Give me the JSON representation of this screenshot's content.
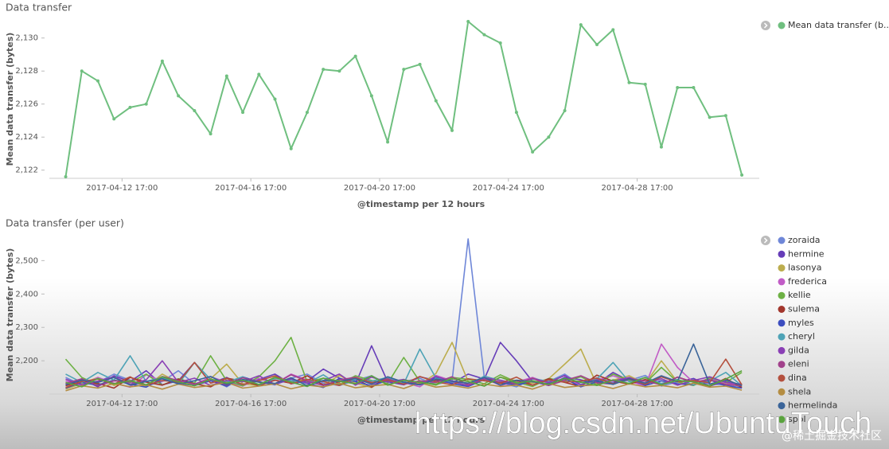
{
  "chart_data": [
    {
      "type": "line",
      "title": "Data transfer",
      "x_label": "@timestamp per 12 hours",
      "y_label": "Mean data transfer (bytes)",
      "x": [
        "2017-04-10 23:00",
        "2017-04-11 11:00",
        "2017-04-11 23:00",
        "2017-04-12 11:00",
        "2017-04-12 23:00",
        "2017-04-13 11:00",
        "2017-04-13 23:00",
        "2017-04-14 11:00",
        "2017-04-14 23:00",
        "2017-04-15 11:00",
        "2017-04-15 23:00",
        "2017-04-16 11:00",
        "2017-04-16 23:00",
        "2017-04-17 11:00",
        "2017-04-17 23:00",
        "2017-04-18 11:00",
        "2017-04-18 23:00",
        "2017-04-19 11:00",
        "2017-04-19 23:00",
        "2017-04-20 11:00",
        "2017-04-20 23:00",
        "2017-04-21 11:00",
        "2017-04-21 23:00",
        "2017-04-22 11:00",
        "2017-04-22 23:00",
        "2017-04-23 11:00",
        "2017-04-23 23:00",
        "2017-04-24 11:00",
        "2017-04-24 23:00",
        "2017-04-25 11:00",
        "2017-04-25 23:00",
        "2017-04-26 11:00",
        "2017-04-26 23:00",
        "2017-04-27 11:00",
        "2017-04-27 23:00",
        "2017-04-28 11:00",
        "2017-04-28 23:00",
        "2017-04-29 11:00",
        "2017-04-29 23:00",
        "2017-04-30 11:00",
        "2017-04-30 23:00",
        "2017-05-01 11:00",
        "2017-05-01 23:00"
      ],
      "xlim": [
        "2017-04-10 12:00",
        "2017-05-02 12:00"
      ],
      "xticks": [
        "2017-04-12 17:00",
        "2017-04-16 17:00",
        "2017-04-20 17:00",
        "2017-04-24 17:00",
        "2017-04-28 17:00"
      ],
      "ylim": [
        2121.6,
        2131
      ],
      "yticks": [
        {
          "value": 2122,
          "label": "2,122"
        },
        {
          "value": 2124,
          "label": "2,124"
        },
        {
          "value": 2126,
          "label": "2,126"
        },
        {
          "value": 2128,
          "label": "2,128"
        },
        {
          "value": 2130,
          "label": "2,130"
        }
      ],
      "markers": true,
      "legend": "right",
      "series": [
        {
          "name": "Mean data transfer (b...",
          "color": "#6fbf7f",
          "values": [
            2121.6,
            2128.0,
            2127.4,
            2125.1,
            2125.8,
            2126.0,
            2128.6,
            2126.5,
            2125.6,
            2124.2,
            2127.7,
            2125.5,
            2127.8,
            2126.3,
            2123.3,
            2125.5,
            2128.1,
            2128.0,
            2128.9,
            2126.5,
            2123.7,
            2128.1,
            2128.4,
            2126.2,
            2124.4,
            2131.0,
            2130.2,
            2129.7,
            2125.5,
            2123.1,
            2124.0,
            2125.6,
            2130.8,
            2129.6,
            2130.5,
            2127.3,
            2127.2,
            2123.4,
            2127.0,
            2127.0,
            2125.2,
            2125.3,
            2121.7
          ]
        }
      ]
    },
    {
      "type": "line",
      "title": "Data transfer (per user)",
      "x_label": "@timestamp per 12 hours",
      "y_label": "Mean data transfer (bytes)",
      "x": [
        "2017-04-10 23:00",
        "2017-04-11 11:00",
        "2017-04-11 23:00",
        "2017-04-12 11:00",
        "2017-04-12 23:00",
        "2017-04-13 11:00",
        "2017-04-13 23:00",
        "2017-04-14 11:00",
        "2017-04-14 23:00",
        "2017-04-15 11:00",
        "2017-04-15 23:00",
        "2017-04-16 11:00",
        "2017-04-16 23:00",
        "2017-04-17 11:00",
        "2017-04-17 23:00",
        "2017-04-18 11:00",
        "2017-04-18 23:00",
        "2017-04-19 11:00",
        "2017-04-19 23:00",
        "2017-04-20 11:00",
        "2017-04-20 23:00",
        "2017-04-21 11:00",
        "2017-04-21 23:00",
        "2017-04-22 11:00",
        "2017-04-22 23:00",
        "2017-04-23 11:00",
        "2017-04-23 23:00",
        "2017-04-24 11:00",
        "2017-04-24 23:00",
        "2017-04-25 11:00",
        "2017-04-25 23:00",
        "2017-04-26 11:00",
        "2017-04-26 23:00",
        "2017-04-27 11:00",
        "2017-04-27 23:00",
        "2017-04-28 11:00",
        "2017-04-28 23:00",
        "2017-04-29 11:00",
        "2017-04-29 23:00",
        "2017-04-30 11:00",
        "2017-04-30 23:00",
        "2017-05-01 11:00",
        "2017-05-01 23:00"
      ],
      "xlim": [
        "2017-04-10 12:00",
        "2017-05-02 12:00"
      ],
      "xticks": [
        "2017-04-12 17:00",
        "2017-04-16 17:00",
        "2017-04-20 17:00",
        "2017-04-24 17:00",
        "2017-04-28 17:00"
      ],
      "ylim": [
        2105,
        2570
      ],
      "yticks": [
        {
          "value": 2200,
          "label": "2,200"
        },
        {
          "value": 2300,
          "label": "2,300"
        },
        {
          "value": 2400,
          "label": "2,400"
        },
        {
          "value": 2500,
          "label": "2,500"
        }
      ],
      "markers": false,
      "legend": "right",
      "series": [
        {
          "name": "zoraida",
          "color": "#6f87d8",
          "values": [
            2150,
            2128,
            2135,
            2160,
            2142,
            2125,
            2138,
            2170,
            2131,
            2145,
            2122,
            2152,
            2136,
            2128,
            2148,
            2160,
            2133,
            2126,
            2141,
            2155,
            2130,
            2138,
            2147,
            2129,
            2140,
            2565,
            2150,
            2134,
            2122,
            2145,
            2138,
            2160,
            2127,
            2149,
            2133,
            2141,
            2156,
            2124,
            2137,
            2145,
            2130,
            2128,
            2118
          ]
        },
        {
          "name": "hermine",
          "color": "#663db8",
          "values": [
            2130,
            2145,
            2122,
            2155,
            2138,
            2170,
            2128,
            2140,
            2195,
            2133,
            2150,
            2126,
            2144,
            2160,
            2131,
            2139,
            2175,
            2148,
            2130,
            2245,
            2137,
            2128,
            2152,
            2141,
            2133,
            2160,
            2145,
            2255,
            2200,
            2138,
            2126,
            2150,
            2143,
            2131,
            2165,
            2140,
            2128,
            2152,
            2136,
            2147,
            2124,
            2139,
            2120
          ]
        },
        {
          "name": "lasonya",
          "color": "#bcad4e",
          "values": [
            2115,
            2132,
            2150,
            2126,
            2141,
            2122,
            2160,
            2135,
            2128,
            2146,
            2190,
            2131,
            2125,
            2152,
            2139,
            2144,
            2127,
            2156,
            2133,
            2120,
            2148,
            2137,
            2129,
            2162,
            2255,
            2138,
            2124,
            2151,
            2140,
            2133,
            2146,
            2190,
            2235,
            2128,
            2142,
            2155,
            2131,
            2200,
            2137,
            2126,
            2149,
            2134,
            2122
          ]
        },
        {
          "name": "frederica",
          "color": "#c15cc6",
          "values": [
            2140,
            2126,
            2150,
            2133,
            2121,
            2158,
            2139,
            2145,
            2128,
            2152,
            2136,
            2124,
            2147,
            2131,
            2160,
            2142,
            2127,
            2138,
            2153,
            2129,
            2144,
            2135,
            2122,
            2156,
            2140,
            2131,
            2148,
            2126,
            2137,
            2150,
            2133,
            2145,
            2128,
            2142,
            2155,
            2139,
            2124,
            2250,
            2180,
            2135,
            2146,
            2130,
            2128
          ]
        },
        {
          "name": "kellie",
          "color": "#6db144",
          "values": [
            2205,
            2150,
            2128,
            2142,
            2135,
            2160,
            2127,
            2146,
            2133,
            2215,
            2140,
            2125,
            2152,
            2200,
            2270,
            2136,
            2148,
            2129,
            2155,
            2141,
            2132,
            2210,
            2138,
            2127,
            2150,
            2144,
            2131,
            2158,
            2136,
            2123,
            2147,
            2139,
            2152,
            2128,
            2160,
            2141,
            2133,
            2180,
            2137,
            2126,
            2149,
            2135,
            2165
          ]
        },
        {
          "name": "sulema",
          "color": "#a2362c",
          "values": [
            2125,
            2140,
            2132,
            2118,
            2150,
            2136,
            2127,
            2145,
            2131,
            2122,
            2148,
            2139,
            2126,
            2142,
            2133,
            2155,
            2128,
            2137,
            2146,
            2121,
            2152,
            2134,
            2129,
            2143,
            2138,
            2125,
            2150,
            2132,
            2141,
            2127,
            2146,
            2135,
            2123,
            2157,
            2139,
            2130,
            2144,
            2128,
            2151,
            2136,
            2124,
            2147,
            2120
          ]
        },
        {
          "name": "myles",
          "color": "#3c4dbf",
          "values": [
            2118,
            2135,
            2127,
            2142,
            2130,
            2121,
            2148,
            2133,
            2126,
            2140,
            2124,
            2151,
            2137,
            2129,
            2145,
            2132,
            2120,
            2147,
            2138,
            2125,
            2141,
            2134,
            2128,
            2150,
            2131,
            2123,
            2144,
            2136,
            2127,
            2139,
            2130,
            2146,
            2122,
            2137,
            2133,
            2149,
            2126,
            2140,
            2131,
            2128,
            2143,
            2125,
            2118
          ]
        },
        {
          "name": "cheryl",
          "color": "#4ea3b6",
          "values": [
            2160,
            2135,
            2165,
            2142,
            2215,
            2138,
            2150,
            2130,
            2195,
            2144,
            2136,
            2152,
            2128,
            2147,
            2140,
            2133,
            2158,
            2126,
            2145,
            2139,
            2150,
            2131,
            2235,
            2148,
            2136,
            2127,
            2154,
            2141,
            2130,
            2147,
            2138,
            2156,
            2129,
            2145,
            2195,
            2137,
            2150,
            2132,
            2144,
            2128,
            2139,
            2165,
            2125
          ]
        },
        {
          "name": "gilda",
          "color": "#8a3fb5",
          "values": [
            2145,
            2128,
            2139,
            2152,
            2130,
            2143,
            2200,
            2135,
            2148,
            2126,
            2141,
            2137,
            2155,
            2129,
            2146,
            2133,
            2140,
            2160,
            2127,
            2151,
            2136,
            2144,
            2130,
            2153,
            2138,
            2125,
            2149,
            2142,
            2131,
            2147,
            2135,
            2156,
            2128,
            2143,
            2139,
            2150,
            2133,
            2146,
            2127,
            2141,
            2152,
            2135,
            2130
          ]
        },
        {
          "name": "eleni",
          "color": "#a1418b",
          "values": [
            2132,
            2146,
            2125,
            2140,
            2137,
            2128,
            2153,
            2141,
            2130,
            2145,
            2127,
            2149,
            2136,
            2131,
            2158,
            2139,
            2126,
            2143,
            2150,
            2133,
            2146,
            2129,
            2140,
            2135,
            2152,
            2128,
            2144,
            2137,
            2131,
            2148,
            2126,
            2141,
            2155,
            2134,
            2130,
            2147,
            2139,
            2128,
            2151,
            2136,
            2143,
            2129,
            2125
          ]
        },
        {
          "name": "dina",
          "color": "#b4503e",
          "values": [
            2120,
            2138,
            2145,
            2130,
            2152,
            2127,
            2141,
            2136,
            2195,
            2133,
            2147,
            2129,
            2140,
            2155,
            2131,
            2144,
            2138,
            2126,
            2149,
            2135,
            2142,
            2130,
            2153,
            2137,
            2128,
            2146,
            2140,
            2133,
            2151,
            2127,
            2143,
            2136,
            2139,
            2148,
            2131,
            2145,
            2129,
            2152,
            2137,
            2141,
            2134,
            2205,
            2128
          ]
        },
        {
          "name": "shela",
          "color": "#b48d42",
          "values": [
            2110,
            2125,
            2118,
            2132,
            2122,
            2128,
            2115,
            2130,
            2120,
            2126,
            2135,
            2118,
            2124,
            2131,
            2116,
            2127,
            2122,
            2133,
            2119,
            2125,
            2129,
            2117,
            2134,
            2121,
            2126,
            2118,
            2130,
            2123,
            2127,
            2115,
            2132,
            2120,
            2125,
            2128,
            2117,
            2131,
            2122,
            2126,
            2119,
            2133,
            2121,
            2124,
            2112
          ]
        },
        {
          "name": "hermelinda",
          "color": "#3a6499",
          "values": [
            2128,
            2142,
            2135,
            2150,
            2127,
            2138,
            2146,
            2131,
            2140,
            2153,
            2129,
            2144,
            2136,
            2132,
            2149,
            2125,
            2141,
            2138,
            2147,
            2130,
            2152,
            2136,
            2128,
            2145,
            2139,
            2133,
            2150,
            2127,
            2142,
            2137,
            2131,
            2148,
            2135,
            2140,
            2129,
            2146,
            2133,
            2155,
            2138,
            2250,
            2130,
            2143,
            2126
          ]
        },
        {
          "name": "spol",
          "color": "#5aa33e",
          "values": [
            2135,
            2122,
            2147,
            2131,
            2140,
            2128,
            2152,
            2137,
            2125,
            2145,
            2133,
            2141,
            2129,
            2150,
            2136,
            2123,
            2148,
            2139,
            2131,
            2155,
            2127,
            2142,
            2135,
            2130,
            2146,
            2138,
            2124,
            2151,
            2133,
            2140,
            2129,
            2147,
            2136,
            2126,
            2143,
            2132,
            2150,
            2128,
            2141,
            2137,
            2125,
            2145,
            2170
          ]
        }
      ]
    }
  ],
  "watermark": {
    "url": "https://blog.csdn.net/UbuntuTouch",
    "credit": "@稀土掘金技术社区"
  }
}
